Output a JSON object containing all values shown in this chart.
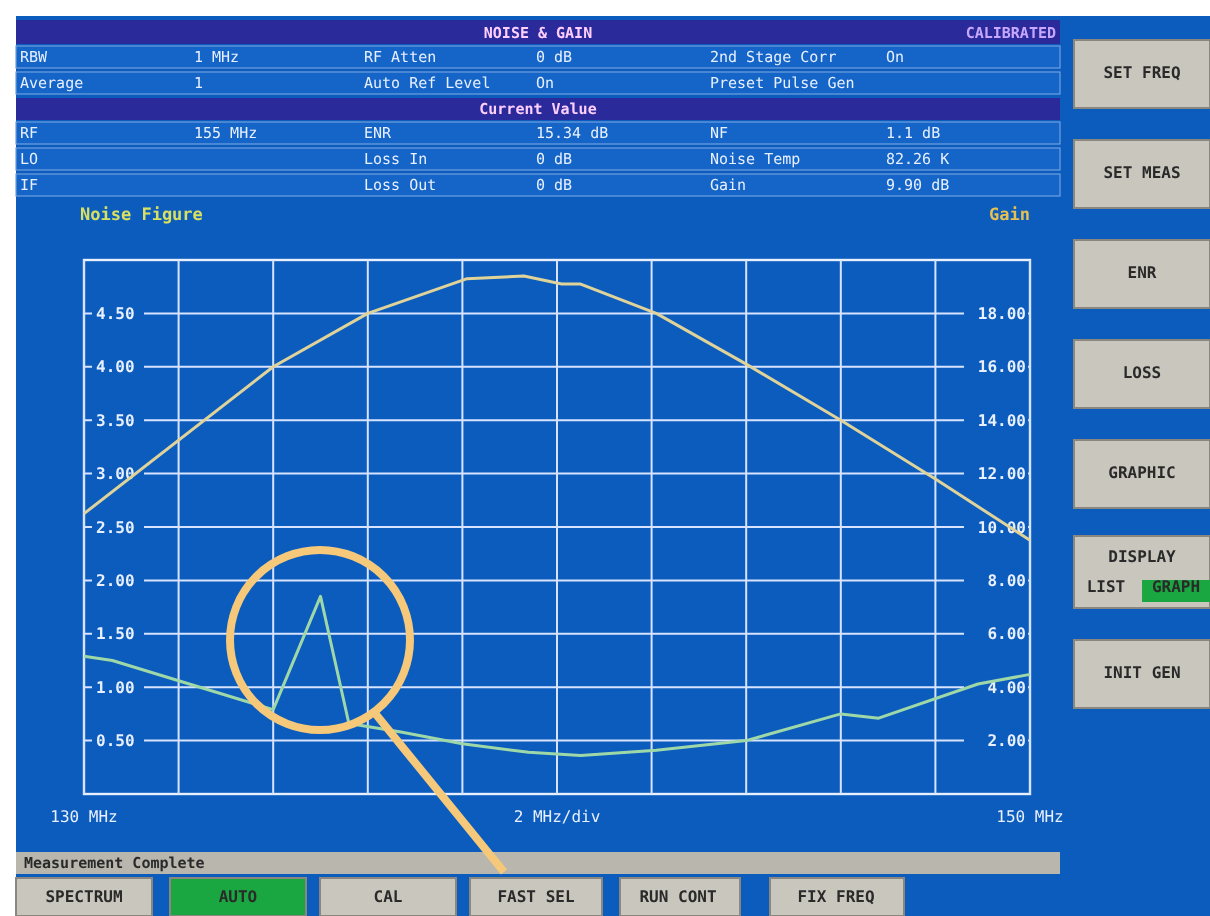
{
  "chart_data": {
    "type": "line",
    "ylabel": "Noise Figure",
    "y2label": "Gain",
    "xlabel": "2 MHz/div",
    "xlim": [
      130,
      150
    ],
    "xticks": [
      {
        "value": 130,
        "label": "130 MHz"
      },
      {
        "value": 132,
        "label": null
      },
      {
        "value": 134,
        "label": null
      },
      {
        "value": 136,
        "label": null
      },
      {
        "value": 138,
        "label": null
      },
      {
        "value": 140,
        "label": null
      },
      {
        "value": 142,
        "label": null
      },
      {
        "value": 144,
        "label": null
      },
      {
        "value": 146,
        "label": null
      },
      {
        "value": 148,
        "label": null
      },
      {
        "value": 150,
        "label": "150 MHz"
      }
    ],
    "ylim": [
      0,
      5
    ],
    "yticks": [
      {
        "value": 0.5,
        "label": "0.50"
      },
      {
        "value": 1,
        "label": "1.00"
      },
      {
        "value": 1.5,
        "label": "1.50"
      },
      {
        "value": 2,
        "label": "2.00"
      },
      {
        "value": 2.5,
        "label": "2.50"
      },
      {
        "value": 3,
        "label": "3.00"
      },
      {
        "value": 3.5,
        "label": "3.50"
      },
      {
        "value": 4,
        "label": "4.00"
      },
      {
        "value": 4.5,
        "label": "4.50"
      }
    ],
    "y2lim": [
      0,
      20
    ],
    "y2ticks": [
      {
        "value": 2,
        "label": "2.00"
      },
      {
        "value": 4,
        "label": "4.00"
      },
      {
        "value": 6,
        "label": "6.00"
      },
      {
        "value": 8,
        "label": "8.00"
      },
      {
        "value": 10,
        "label": "10.00"
      },
      {
        "value": 12,
        "label": "12.00"
      },
      {
        "value": 14,
        "label": "14.00"
      },
      {
        "value": 16,
        "label": "16.00"
      },
      {
        "value": 18,
        "label": "18.00"
      }
    ],
    "grid": true,
    "marker": "none",
    "line_style": "solid",
    "series": [
      {
        "color": "#9fd8a8",
        "x": [
          130,
          130.6,
          134.0,
          135.0,
          135.6,
          136.7,
          138.0,
          139.4,
          140.5,
          142.1,
          144.0,
          146.0,
          146.8,
          148.9,
          150
        ],
        "values": [
          1.29,
          1.25,
          0.79,
          1.85,
          0.66,
          0.58,
          0.47,
          0.39,
          0.36,
          0.41,
          0.5,
          0.75,
          0.71,
          1.03,
          1.12
        ]
      },
      {
        "color": "#e0d39a",
        "axis": "y2",
        "x": [
          130,
          134.0,
          136.0,
          138.1,
          139.3,
          140.1,
          140.5,
          142.1,
          144.0,
          146.0,
          148.0,
          150
        ],
        "values": [
          10.5,
          16.0,
          18.0,
          19.3,
          19.4,
          19.1,
          19.1,
          18.0,
          16.1,
          14.0,
          11.8,
          9.5
        ]
      }
    ],
    "annotations": [
      "NOISE & GAIN",
      "CALIBRATED",
      "RBW",
      "1 MHz",
      "RF Atten",
      "0 dB",
      "2nd Stage Corr",
      "On",
      "Average",
      "1",
      "Auto Ref Level",
      "On",
      "Preset Pulse Gen",
      "Current Value",
      "RF",
      "155 MHz",
      "ENR",
      "15.34 dB",
      "NF",
      "1.1 dB",
      "LO",
      "Loss In",
      "0 dB",
      "Noise Temp",
      "82.26 K",
      "IF",
      "Loss Out",
      "0 dB",
      "Gain",
      "9.90 dB",
      "SET FREQ",
      "SET MEAS",
      "ENR",
      "LOSS",
      "GRAPHIC",
      "DISPLAY",
      "LIST",
      "GRAPH",
      "INIT GEN",
      "Measurement Complete",
      "SPECTRUM",
      "AUTO",
      "CAL",
      "FAST SEL",
      "RUN CONT",
      "FIX FREQ"
    ]
  }
}
